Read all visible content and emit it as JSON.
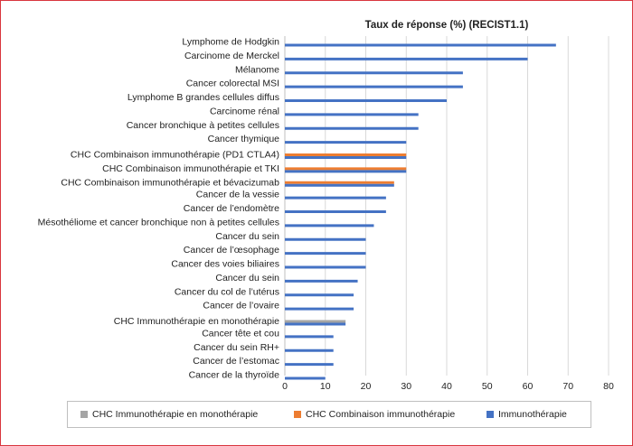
{
  "chart_data": {
    "type": "bar",
    "orientation": "horizontal",
    "title": "Taux de réponse (%) (RECIST1.1)",
    "xlim": [
      0,
      80
    ],
    "xticks": [
      0,
      10,
      20,
      30,
      40,
      50,
      60,
      70,
      80
    ],
    "grid": "vertical",
    "legend_position": "bottom",
    "colors": {
      "immuno": "#4472c4",
      "combo": "#ed7d31",
      "mono": "#a5a5a5"
    },
    "legend": [
      {
        "name": "CHC Immunothérapie en monothérapie",
        "color_key": "mono"
      },
      {
        "name": "CHC Combinaison immunothérapie",
        "color_key": "combo"
      },
      {
        "name": "Immunothérapie",
        "color_key": "immuno"
      }
    ],
    "categories": [
      {
        "label": "Lymphome de Hodgkin",
        "bars": [
          {
            "value": 67,
            "color_key": "immuno"
          }
        ]
      },
      {
        "label": "Carcinome de Merckel",
        "bars": [
          {
            "value": 60,
            "color_key": "immuno"
          }
        ]
      },
      {
        "label": "Mélanome",
        "bars": [
          {
            "value": 44,
            "color_key": "immuno"
          }
        ]
      },
      {
        "label": "Cancer colorectal MSI",
        "bars": [
          {
            "value": 44,
            "color_key": "immuno"
          }
        ]
      },
      {
        "label": "Lymphome B grandes cellules diffus",
        "bars": [
          {
            "value": 40,
            "color_key": "immuno"
          }
        ]
      },
      {
        "label": "Carcinome rénal",
        "bars": [
          {
            "value": 33,
            "color_key": "immuno"
          }
        ]
      },
      {
        "label": "Cancer bronchique à petites cellules",
        "bars": [
          {
            "value": 33,
            "color_key": "immuno"
          }
        ]
      },
      {
        "label": "Cancer thymique",
        "bars": [
          {
            "value": 30,
            "color_key": "immuno"
          }
        ]
      },
      {
        "label": "CHC Combinaison immunothérapie (PD1 CTLA4)",
        "bars": [
          {
            "value": 30,
            "color_key": "combo"
          },
          {
            "value": 30,
            "color_key": "immuno"
          }
        ]
      },
      {
        "label": "CHC Combinaison immunothérapie et TKI",
        "bars": [
          {
            "value": 30,
            "color_key": "combo"
          },
          {
            "value": 30,
            "color_key": "immuno"
          }
        ]
      },
      {
        "label": "CHC Combinaison immunothérapie et bévacizumab",
        "bars": [
          {
            "value": 27,
            "color_key": "combo"
          },
          {
            "value": 27,
            "color_key": "immuno"
          }
        ]
      },
      {
        "label": "Cancer de la vessie",
        "bars": [
          {
            "value": 25,
            "color_key": "immuno"
          }
        ]
      },
      {
        "label": "Cancer de l’endomètre",
        "bars": [
          {
            "value": 25,
            "color_key": "immuno"
          }
        ]
      },
      {
        "label": "Mésothéliome et cancer bronchique non à petites cellules",
        "bars": [
          {
            "value": 22,
            "color_key": "immuno"
          }
        ]
      },
      {
        "label": "Cancer du sein",
        "bars": [
          {
            "value": 20,
            "color_key": "immuno"
          }
        ]
      },
      {
        "label": "Cancer de l’œsophage",
        "bars": [
          {
            "value": 20,
            "color_key": "immuno"
          }
        ]
      },
      {
        "label": "Cancer des voies biliaires",
        "bars": [
          {
            "value": 20,
            "color_key": "immuno"
          }
        ]
      },
      {
        "label": "Cancer du sein",
        "bars": [
          {
            "value": 18,
            "color_key": "immuno"
          }
        ]
      },
      {
        "label": "Cancer du col de l’utérus",
        "bars": [
          {
            "value": 17,
            "color_key": "immuno"
          }
        ]
      },
      {
        "label": "Cancer de l’ovaire",
        "bars": [
          {
            "value": 17,
            "color_key": "immuno"
          }
        ]
      },
      {
        "label": "CHC Immunothérapie en monothérapie",
        "bars": [
          {
            "value": 15,
            "color_key": "mono"
          },
          {
            "value": 15,
            "color_key": "immuno"
          }
        ]
      },
      {
        "label": "Cancer tête et cou",
        "bars": [
          {
            "value": 12,
            "color_key": "immuno"
          }
        ]
      },
      {
        "label": "Cancer du sein RH+",
        "bars": [
          {
            "value": 12,
            "color_key": "immuno"
          }
        ]
      },
      {
        "label": "Cancer de l’estomac",
        "bars": [
          {
            "value": 12,
            "color_key": "immuno"
          }
        ]
      },
      {
        "label": "Cancer de la thyroïde",
        "bars": [
          {
            "value": 10,
            "color_key": "immuno"
          }
        ]
      }
    ]
  }
}
